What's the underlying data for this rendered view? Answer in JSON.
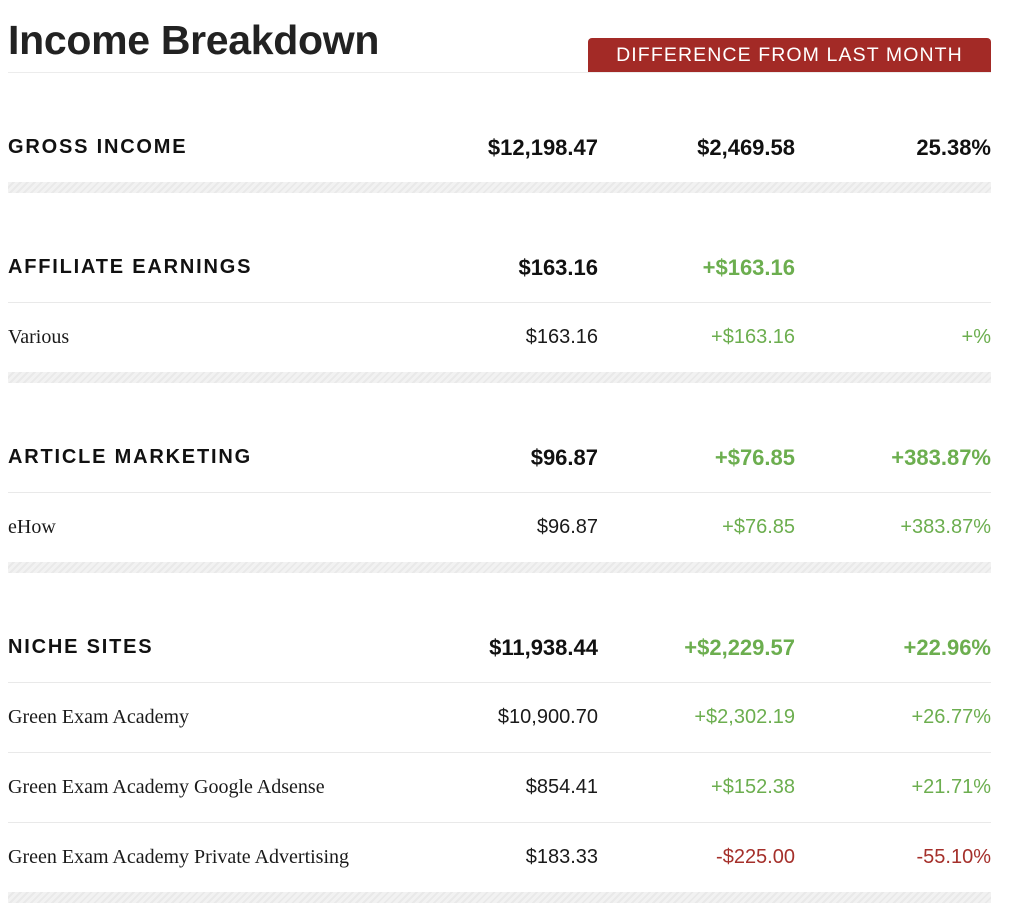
{
  "header": {
    "title": "Income Breakdown",
    "badge": "DIFFERENCE FROM LAST MONTH"
  },
  "gross": {
    "label": "GROSS INCOME",
    "amount": "$12,198.47",
    "diff": "$2,469.58",
    "pct": "25.38%"
  },
  "affiliate": {
    "label": "AFFILIATE EARNINGS",
    "amount": "$163.16",
    "diff": "+$163.16",
    "pct": "",
    "items": [
      {
        "label": "Various",
        "amount": "$163.16",
        "diff": "+$163.16",
        "pct": "+%"
      }
    ]
  },
  "article": {
    "label": "ARTICLE MARKETING",
    "amount": "$96.87",
    "diff": "+$76.85",
    "pct": "+383.87%",
    "items": [
      {
        "label": "eHow",
        "amount": "$96.87",
        "diff": "+$76.85",
        "pct": "+383.87%"
      }
    ]
  },
  "niche": {
    "label": "NICHE SITES",
    "amount": "$11,938.44",
    "diff": "+$2,229.57",
    "pct": "+22.96%",
    "items": [
      {
        "label": "Green Exam Academy",
        "amount": "$10,900.70",
        "diff": "+$2,302.19",
        "pct": "+26.77%"
      },
      {
        "label": "Green Exam Academy Google Adsense",
        "amount": "$854.41",
        "diff": "+$152.38",
        "pct": "+21.71%"
      },
      {
        "label": "Green Exam Academy Private Advertising",
        "amount": "$183.33",
        "diff": "-$225.00",
        "pct": "-55.10%"
      }
    ]
  },
  "colors": {
    "positive": "#6cae4f",
    "negative": "#a5302b",
    "badge_bg": "#a32a26"
  }
}
